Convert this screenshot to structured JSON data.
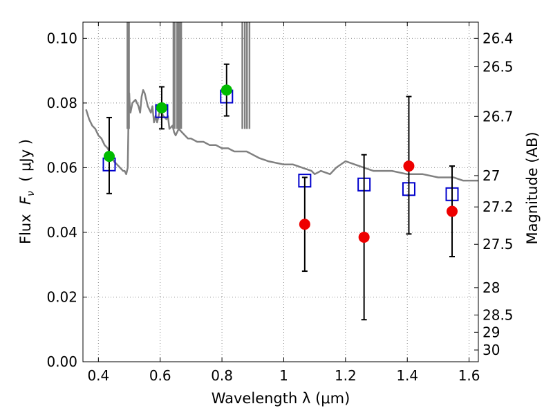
{
  "chart_data": {
    "type": "scatter",
    "title": "",
    "xlabel": "Wavelength  λ (μm)",
    "ylabel": "Flux  F_ν  ( μJy )",
    "ylabel_parts": {
      "prefix": "Flux  ",
      "var": "F",
      "sub": "ν",
      "suffix": "  ( μJy )"
    },
    "y2label": "Magnitude (AB)",
    "xlim": [
      0.35,
      1.63
    ],
    "ylim": [
      0.0,
      0.105
    ],
    "grid": true,
    "x_ticks": [
      0.4,
      0.6,
      0.8,
      1.0,
      1.2,
      1.4,
      1.6
    ],
    "x_tick_labels": [
      "0.4",
      "0.6",
      "0.8",
      "1",
      "1.2",
      "1.4",
      "1.6"
    ],
    "y_ticks": [
      0.0,
      0.02,
      0.04,
      0.06,
      0.08,
      0.1
    ],
    "y_tick_labels": [
      "0.00",
      "0.02",
      "0.04",
      "0.06",
      "0.08",
      "0.10"
    ],
    "y2_ticks": [
      26.4,
      26.5,
      26.7,
      27,
      27.2,
      27.5,
      28,
      28.5,
      29,
      30
    ],
    "y2_tick_labels": [
      "26.4",
      "26.5",
      "26.7",
      "27",
      "27.2",
      "27.5",
      "28",
      "28.5",
      "29",
      "30"
    ],
    "colors": {
      "model": "#808080",
      "model_photometry": "#0000cc",
      "detections": "#00bb00",
      "non_detections": "#ee0000",
      "errorbars": "#000000",
      "grid": "#888888"
    },
    "series": [
      {
        "name": "model spectrum",
        "kind": "line",
        "x": [
          0.36,
          0.37,
          0.38,
          0.39,
          0.4,
          0.41,
          0.42,
          0.43,
          0.44,
          0.45,
          0.46,
          0.47,
          0.48,
          0.485,
          0.49,
          0.495,
          0.498,
          0.5,
          0.502,
          0.504,
          0.51,
          0.52,
          0.53,
          0.535,
          0.54,
          0.545,
          0.55,
          0.56,
          0.57,
          0.575,
          0.58,
          0.585,
          0.59,
          0.6,
          0.61,
          0.62,
          0.625,
          0.63,
          0.64,
          0.645,
          0.65,
          0.66,
          0.67,
          0.68,
          0.69,
          0.7,
          0.72,
          0.74,
          0.76,
          0.78,
          0.8,
          0.82,
          0.84,
          0.86,
          0.88,
          0.9,
          0.92,
          0.95,
          1.0,
          1.03,
          1.06,
          1.09,
          1.1,
          1.12,
          1.15,
          1.17,
          1.2,
          1.23,
          1.26,
          1.29,
          1.32,
          1.35,
          1.4,
          1.45,
          1.5,
          1.55,
          1.58,
          1.63
        ],
        "y": [
          0.078,
          0.075,
          0.073,
          0.072,
          0.07,
          0.069,
          0.067,
          0.066,
          0.064,
          0.062,
          0.061,
          0.06,
          0.059,
          0.059,
          0.058,
          0.06,
          0.078,
          0.083,
          0.078,
          0.077,
          0.08,
          0.081,
          0.079,
          0.077,
          0.082,
          0.084,
          0.083,
          0.079,
          0.077,
          0.079,
          0.074,
          0.076,
          0.074,
          0.078,
          0.076,
          0.075,
          0.076,
          0.072,
          0.073,
          0.071,
          0.07,
          0.072,
          0.071,
          0.07,
          0.069,
          0.069,
          0.068,
          0.068,
          0.067,
          0.067,
          0.066,
          0.066,
          0.065,
          0.065,
          0.065,
          0.064,
          0.063,
          0.062,
          0.061,
          0.061,
          0.06,
          0.059,
          0.058,
          0.059,
          0.058,
          0.06,
          0.062,
          0.061,
          0.06,
          0.059,
          0.059,
          0.059,
          0.058,
          0.058,
          0.057,
          0.057,
          0.056,
          0.056
        ]
      },
      {
        "name": "model spikes",
        "kind": "spikes",
        "x": [
          0.494,
          0.499,
          0.643,
          0.647,
          0.655,
          0.659,
          0.664,
          0.668,
          0.866,
          0.874,
          0.881,
          0.889
        ],
        "y": [
          0.105,
          0.105,
          0.105,
          0.105,
          0.105,
          0.105,
          0.105,
          0.105,
          0.105,
          0.105,
          0.105,
          0.105
        ]
      },
      {
        "name": "model photometry",
        "kind": "squares",
        "x": [
          0.435,
          0.605,
          0.815,
          1.068,
          1.26,
          1.405,
          1.545
        ],
        "y": [
          0.061,
          0.0775,
          0.082,
          0.056,
          0.0548,
          0.0534,
          0.0518
        ]
      },
      {
        "name": "detections",
        "kind": "circles",
        "x": [
          0.435,
          0.605,
          0.815
        ],
        "y": [
          0.0635,
          0.0785,
          0.084
        ],
        "yerr_low": [
          0.0115,
          0.0065,
          0.008
        ],
        "yerr_high": [
          0.012,
          0.0065,
          0.008
        ]
      },
      {
        "name": "non-detections",
        "kind": "circles",
        "x": [
          1.068,
          1.26,
          1.405,
          1.545
        ],
        "y": [
          0.0425,
          0.0385,
          0.0605,
          0.0465
        ],
        "yerr_low": [
          0.0145,
          0.0255,
          0.021,
          0.014
        ],
        "yerr_high": [
          0.0145,
          0.0255,
          0.0215,
          0.014
        ]
      }
    ]
  }
}
